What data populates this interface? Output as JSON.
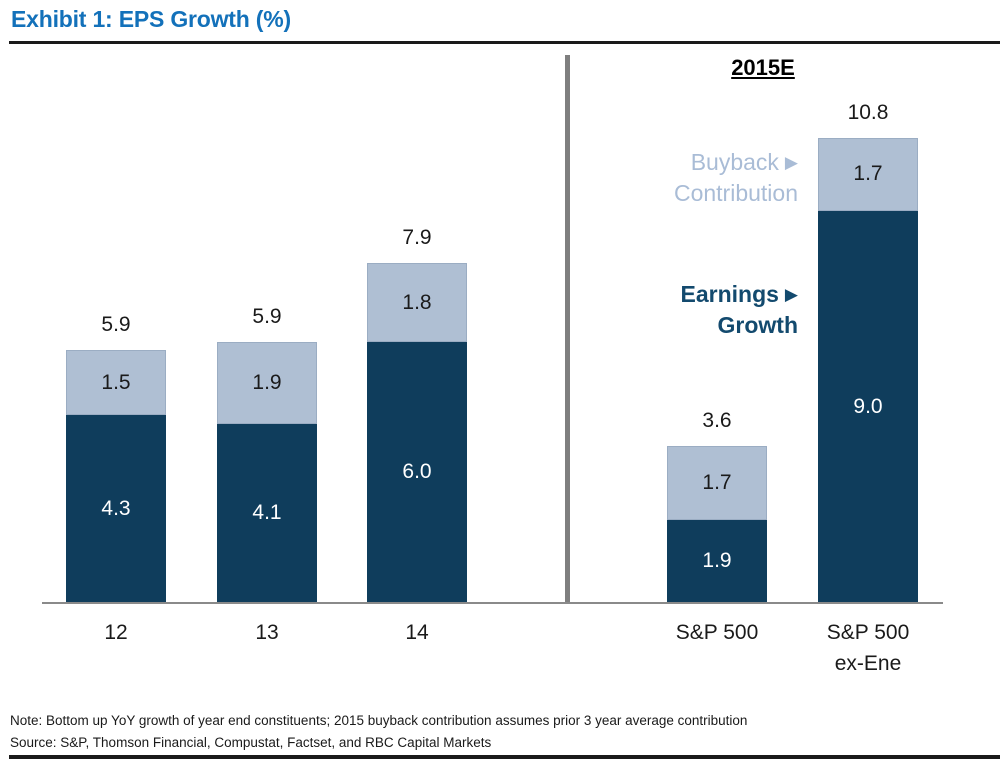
{
  "header": {
    "title": "Exhibit 1: EPS Growth (%)"
  },
  "chart_data": {
    "type": "bar",
    "stacked": true,
    "title": "EPS Growth (%)",
    "categories": [
      "12",
      "13",
      "14",
      "S&P 500",
      "S&P 500\nex-Ene"
    ],
    "series": [
      {
        "name": "Earnings Growth",
        "color": "#0F3D5C",
        "values": [
          4.3,
          4.1,
          6.0,
          1.9,
          9.0
        ]
      },
      {
        "name": "Buyback Contribution",
        "color": "#AFBFD3",
        "values": [
          1.5,
          1.9,
          1.8,
          1.7,
          1.7
        ]
      }
    ],
    "totals": [
      5.9,
      5.9,
      7.9,
      3.6,
      10.8
    ],
    "group_label_right": "2015E",
    "ylim": [
      0,
      12
    ],
    "grid": false,
    "legend_position": "right-inline-annotations",
    "divider_after_category_index": 2
  },
  "legend": {
    "buyback_line1": "Buyback",
    "buyback_line2": "Contribution",
    "earnings_line1": "Earnings",
    "earnings_line2": "Growth",
    "pointer_glyph": "▶"
  },
  "colors": {
    "title_blue": "#1371BA",
    "earnings_dark": "#0F3D5C",
    "buyback_light": "#AFBFD3",
    "legend_buyback_text": "#A9BCD6",
    "legend_earnings_text": "#134A6E",
    "axis_gray": "#8a8a8a",
    "divider_gray": "#7f7f7f",
    "rule_black": "#1a1a1a"
  },
  "footer": {
    "note": "Note: Bottom up YoY growth of year end constituents; 2015 buyback contribution assumes prior 3 year average contribution",
    "source": "Source: S&P, Thomson Financial, Compustat, Factset, and RBC Capital Markets"
  }
}
